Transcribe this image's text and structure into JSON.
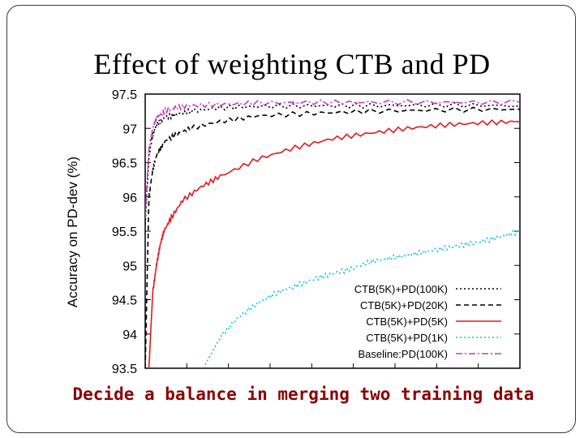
{
  "slide": {
    "title": "Effect of weighting CTB and PD",
    "caption": "Decide a balance in merging two training data"
  },
  "chart_data": {
    "type": "line",
    "title": "",
    "xlabel": "",
    "ylabel": "Accuracy on PD-dev (%)",
    "ylim": [
      93.5,
      97.5
    ],
    "xlim": [
      0,
      100
    ],
    "yticks": [
      93.5,
      94,
      94.5,
      95,
      95.5,
      96,
      96.5,
      97,
      97.5
    ],
    "x_ticks_labeled": false,
    "grid": false,
    "legend": "bottom-right",
    "series": [
      {
        "name": "CTB(5K)+PD(100K)",
        "color": "#000000",
        "dash": "dotted",
        "x": [
          0,
          1,
          2,
          3,
          5,
          8,
          12,
          20,
          30,
          45,
          60,
          80,
          100
        ],
        "values": [
          95.6,
          96.6,
          96.9,
          97.05,
          97.15,
          97.2,
          97.25,
          97.3,
          97.32,
          97.33,
          97.33,
          97.34,
          97.33
        ]
      },
      {
        "name": "CTB(5K)+PD(20K)",
        "color": "#000000",
        "dash": "dashed",
        "x": [
          0,
          1,
          2,
          3,
          5,
          8,
          12,
          20,
          30,
          45,
          60,
          80,
          100
        ],
        "values": [
          93.5,
          96.0,
          96.4,
          96.6,
          96.8,
          96.9,
          97.0,
          97.1,
          97.18,
          97.22,
          97.25,
          97.27,
          97.28
        ]
      },
      {
        "name": "CTB(5K)+PD(5K)",
        "color": "#e31a1c",
        "dash": "solid",
        "x": [
          1,
          2,
          3,
          4,
          5,
          7,
          10,
          15,
          20,
          30,
          40,
          50,
          60,
          70,
          80,
          90,
          100
        ],
        "values": [
          93.5,
          94.6,
          95.0,
          95.3,
          95.5,
          95.7,
          95.95,
          96.15,
          96.3,
          96.55,
          96.72,
          96.85,
          96.93,
          97.0,
          97.05,
          97.08,
          97.1
        ]
      },
      {
        "name": "CTB(5K)+PD(1K)",
        "color": "#00c8e6",
        "dash": "dotted",
        "x": [
          16,
          20,
          25,
          30,
          35,
          40,
          45,
          50,
          55,
          60,
          65,
          70,
          75,
          80,
          85,
          90,
          95,
          100
        ],
        "values": [
          93.55,
          93.95,
          94.25,
          94.45,
          94.6,
          94.7,
          94.8,
          94.88,
          94.95,
          95.05,
          95.1,
          95.15,
          95.2,
          95.25,
          95.3,
          95.35,
          95.42,
          95.5
        ]
      },
      {
        "name": "Baseline:PD(100K)",
        "color": "#cc33cc",
        "dash": "dashdot",
        "x": [
          0,
          1,
          2,
          3,
          5,
          8,
          12,
          20,
          30,
          45,
          60,
          80,
          100
        ],
        "values": [
          95.7,
          96.7,
          97.0,
          97.15,
          97.25,
          97.3,
          97.33,
          97.35,
          97.37,
          97.38,
          97.38,
          97.38,
          97.38
        ]
      }
    ]
  }
}
